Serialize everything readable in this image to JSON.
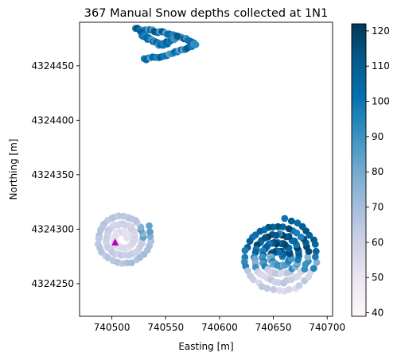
{
  "chart_data": {
    "type": "scatter",
    "title": "367 Manual Snow depths collected at 1N1",
    "xlabel": "Easting [m]",
    "ylabel": "Northing [m]",
    "xlim": [
      740470,
      740705
    ],
    "ylim": [
      4324220,
      4324490
    ],
    "xticks": [
      740500,
      740550,
      740600,
      740650,
      740700
    ],
    "yticks": [
      4324250,
      4324300,
      4324350,
      4324400,
      4324450
    ],
    "colorbar": {
      "vmin": 39,
      "vmax": 122,
      "ticks": [
        40,
        50,
        60,
        70,
        80,
        90,
        100,
        110,
        120
      ],
      "colormap": "PuBu",
      "stops": [
        "#fff7fb",
        "#ece7f2",
        "#d0d1e6",
        "#a6bddb",
        "#74a9cf",
        "#3690c0",
        "#0570b0",
        "#045a8d",
        "#023858"
      ]
    },
    "marker": {
      "x": 740503,
      "y": 4324288,
      "color": "#c000c0",
      "shape": "triangle"
    },
    "point_count": 367,
    "clusters": [
      {
        "name": "north_arc",
        "x_range": [
          740525,
          740578
        ],
        "y_range": [
          4324452,
          4324487
        ],
        "depth_range": [
          80,
          115
        ]
      },
      {
        "name": "west_spiral",
        "center": [
          740510,
          4324292
        ],
        "outer_radius": 27,
        "depth_range": [
          48,
          85
        ]
      },
      {
        "name": "east_spiral",
        "center": [
          740655,
          4324275
        ],
        "outer_radius": 37,
        "depth_range": [
          55,
          122
        ]
      }
    ]
  }
}
